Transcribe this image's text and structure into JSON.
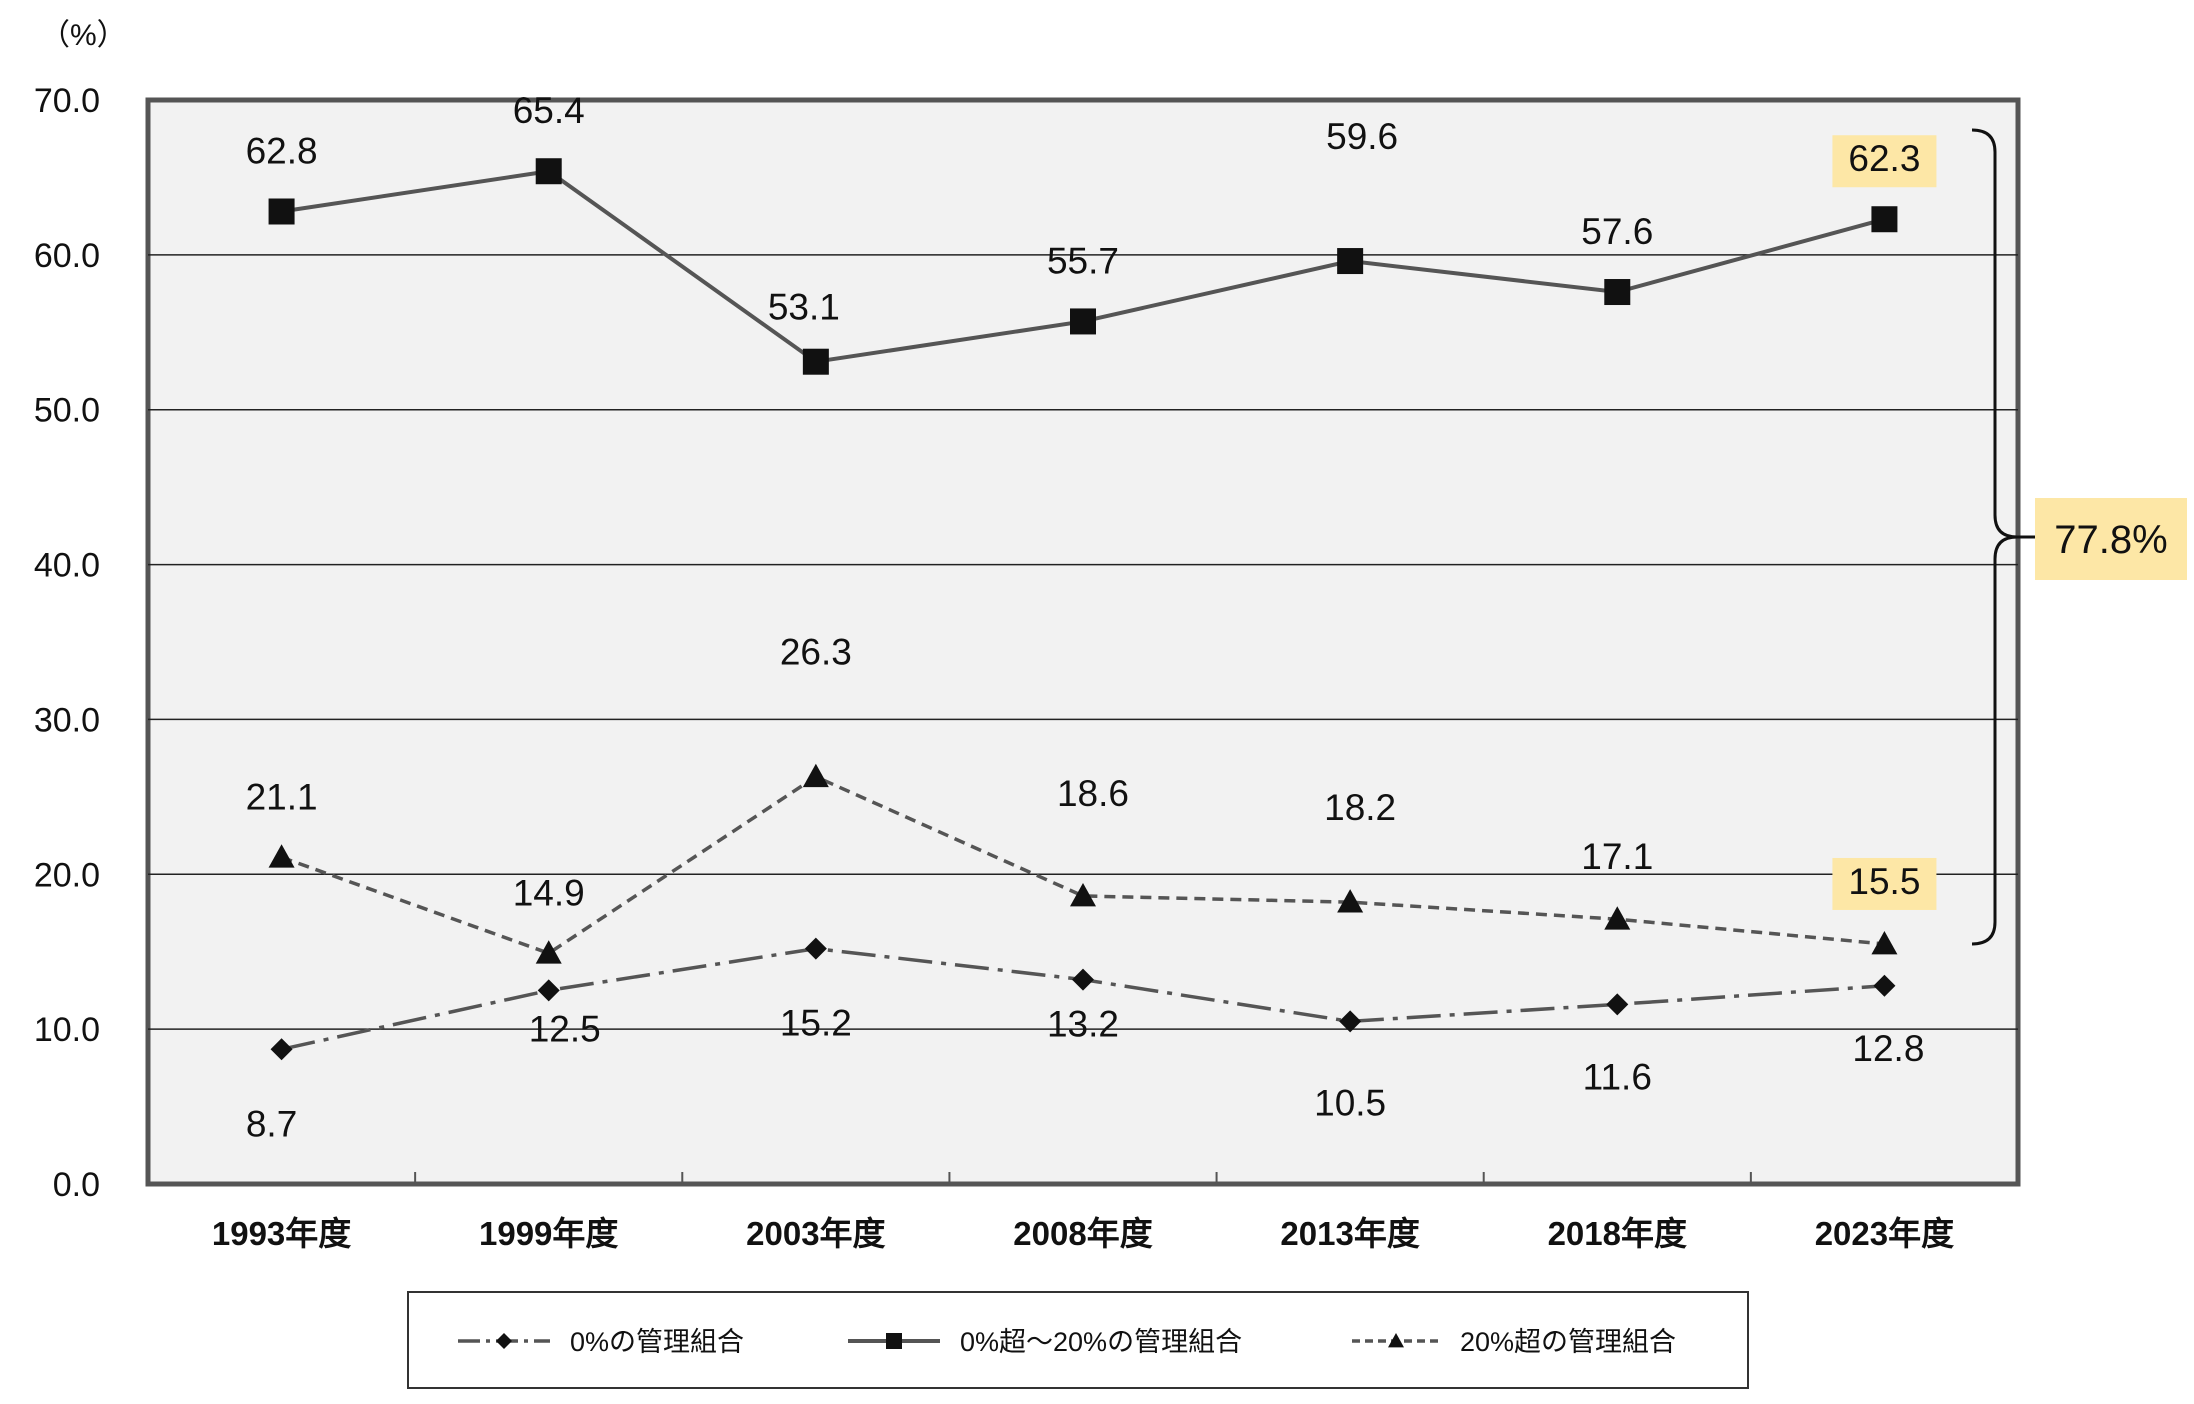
{
  "chart_data": {
    "type": "line",
    "unit_label": "（%）",
    "categories": [
      "1993年度",
      "1999年度",
      "2003年度",
      "2008年度",
      "2013年度",
      "2018年度",
      "2023年度"
    ],
    "ylim": [
      0,
      70
    ],
    "yticks": [
      "0.0",
      "10.0",
      "20.0",
      "30.0",
      "40.0",
      "50.0",
      "60.0",
      "70.0"
    ],
    "grid": true,
    "legend_position": "bottom",
    "series": [
      {
        "name": "0%の管理組合",
        "style": "dash-dot",
        "marker": "diamond",
        "values": [
          8.7,
          12.5,
          15.2,
          13.2,
          10.5,
          11.6,
          12.8
        ],
        "labels": [
          "8.7",
          "12.5",
          "15.2",
          "13.2",
          "10.5",
          "11.6",
          "12.8"
        ]
      },
      {
        "name": "0%超～20%の管理組合",
        "style": "solid",
        "marker": "square",
        "values": [
          62.8,
          65.4,
          53.1,
          55.7,
          59.6,
          57.6,
          62.3
        ],
        "labels": [
          "62.8",
          "65.4",
          "53.1",
          "55.7",
          "59.6",
          "57.6",
          "62.3"
        ]
      },
      {
        "name": "20%超の管理組合",
        "style": "dashed",
        "marker": "triangle",
        "values": [
          21.1,
          14.9,
          26.3,
          18.6,
          18.2,
          17.1,
          15.5
        ],
        "labels": [
          "21.1",
          "14.9",
          "26.3",
          "18.6",
          "18.2",
          "17.1",
          "15.5"
        ]
      }
    ],
    "annotation": {
      "text": "77.8%",
      "highlight_color": "#fde7a6"
    },
    "colors": {
      "line": "#555555",
      "marker": "#111111",
      "plot_bg": "#f2f2f2",
      "frame": "#555555",
      "grid": "#222222"
    }
  }
}
